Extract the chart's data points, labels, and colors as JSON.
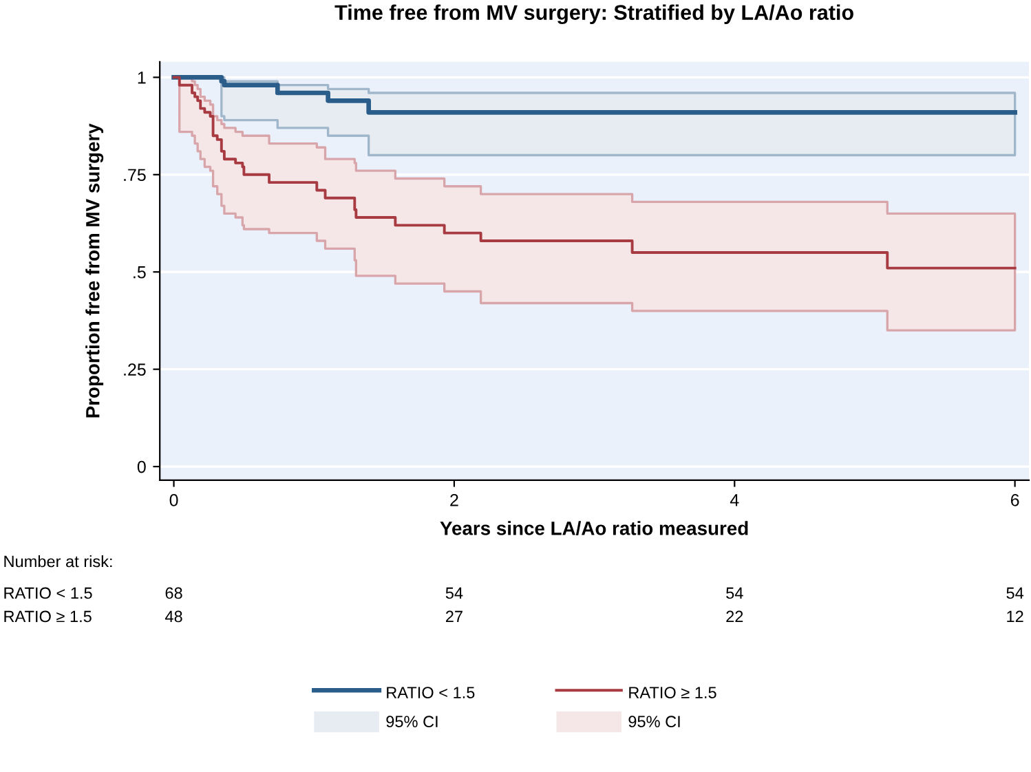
{
  "chart_data": {
    "type": "step",
    "title": "Time free from MV surgery: Stratified by LA/Ao ratio",
    "xlabel": "Years since LA/Ao ratio measured",
    "ylabel": "Proportion free from MV surgery",
    "xlim": [
      -0.1,
      6.1
    ],
    "xticks": [
      0,
      2,
      4,
      6
    ],
    "ylim": [
      -0.035,
      1.04
    ],
    "yticks": [
      0,
      {
        "value": 0.25,
        "label": ".25"
      },
      {
        "value": 0.5,
        "label": ".5"
      },
      {
        "value": 0.75,
        "label": ".75"
      },
      1
    ],
    "grid": "y",
    "legend": "bottom",
    "line_style": "solid",
    "marker": "none",
    "series": [
      {
        "name": "RATIO < 1.5",
        "color": "#2b5d8a",
        "x": [
          0,
          0.34,
          0.36,
          0.74,
          1.1,
          1.39,
          6
        ],
        "values": [
          1,
          0.99,
          0.98,
          0.96,
          0.94,
          0.91,
          0.91
        ],
        "upper": [
          null,
          1.0,
          0.99,
          0.98,
          0.97,
          0.96,
          0.96
        ],
        "lower": [
          null,
          0.9,
          0.89,
          0.87,
          0.85,
          0.8,
          0.8
        ]
      },
      {
        "name": "RATIO ≥ 1.5",
        "color": "#a83a42",
        "x": [
          0,
          0.04,
          0.13,
          0.15,
          0.17,
          0.19,
          0.22,
          0.26,
          0.28,
          0.31,
          0.34,
          0.36,
          0.44,
          0.49,
          0.5,
          0.68,
          1.02,
          1.08,
          1.29,
          1.3,
          1.58,
          1.93,
          2.19,
          3.27,
          5.09,
          6
        ],
        "values": [
          1,
          0.98,
          0.96,
          0.95,
          0.94,
          0.92,
          0.91,
          0.9,
          0.85,
          0.84,
          0.81,
          0.79,
          0.78,
          0.77,
          0.75,
          0.73,
          0.71,
          0.69,
          0.66,
          0.64,
          0.62,
          0.6,
          0.58,
          0.55,
          0.51,
          0.51
        ],
        "upper": [
          null,
          1,
          0.99,
          0.98,
          0.97,
          0.95,
          0.94,
          0.93,
          0.9,
          0.89,
          0.88,
          0.87,
          0.86,
          0.85,
          0.85,
          0.83,
          0.82,
          0.79,
          0.78,
          0.76,
          0.74,
          0.72,
          0.7,
          0.68,
          0.65,
          0.65
        ],
        "lower": [
          null,
          0.86,
          0.85,
          0.83,
          0.81,
          0.79,
          0.77,
          0.76,
          0.72,
          0.7,
          0.67,
          0.65,
          0.64,
          0.62,
          0.61,
          0.6,
          0.58,
          0.56,
          0.53,
          0.49,
          0.47,
          0.45,
          0.42,
          0.4,
          0.35,
          0.35
        ]
      }
    ],
    "annotations": [
      "Number at risk:",
      "RATIO < 1.5",
      "68",
      "54",
      "54",
      "54",
      "RATIO ≥ 1.5",
      "48",
      "27",
      "22",
      "12",
      "95% CI",
      "95% CI"
    ]
  }
}
